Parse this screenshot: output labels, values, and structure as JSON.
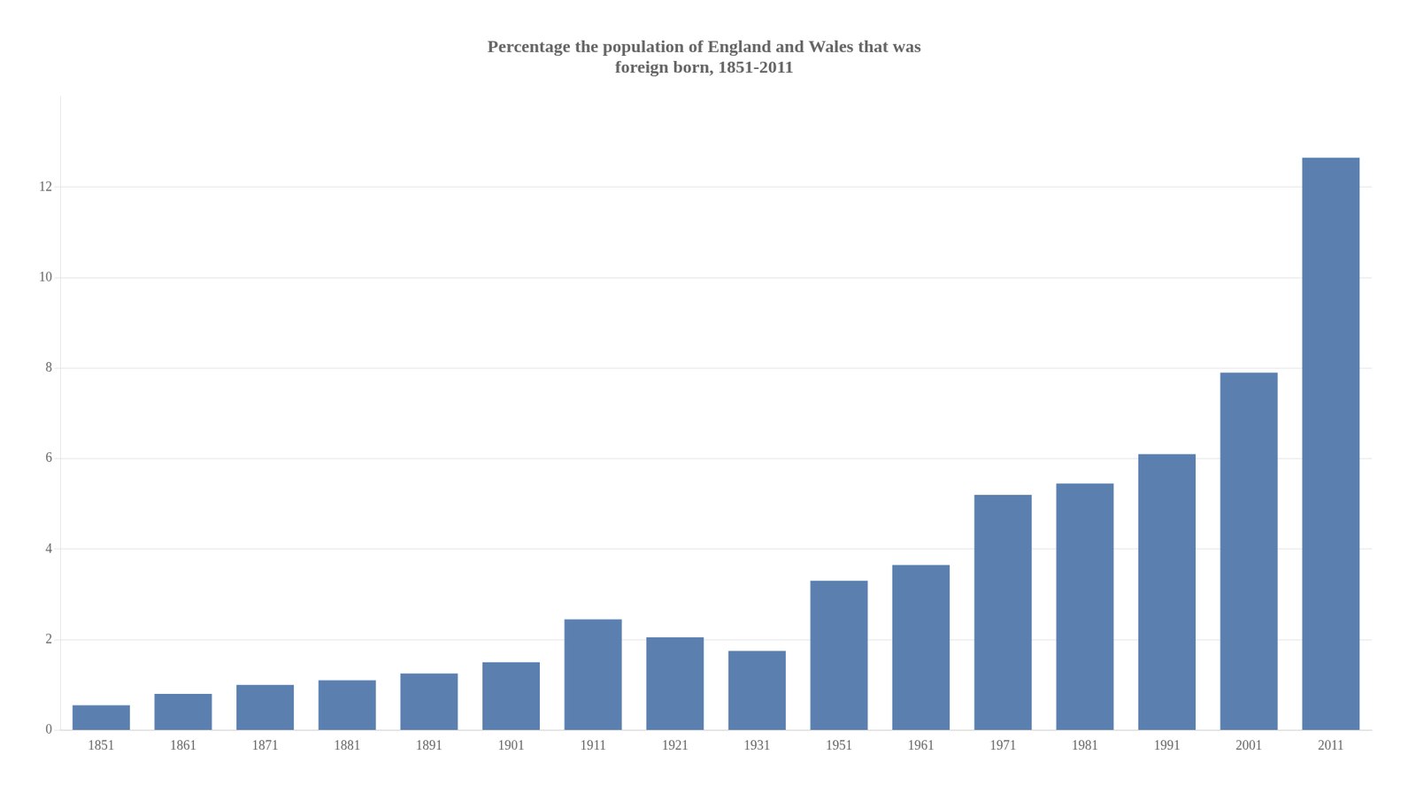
{
  "chart_data": {
    "type": "bar",
    "title": "Percentage the population of England and Wales that was\nforeign born, 1851-2011",
    "categories": [
      "1851",
      "1861",
      "1871",
      "1881",
      "1891",
      "1901",
      "1911",
      "1921",
      "1931",
      "1951",
      "1961",
      "1971",
      "1981",
      "1991",
      "2001",
      "2011"
    ],
    "values": [
      0.55,
      0.8,
      1.0,
      1.1,
      1.25,
      1.5,
      2.45,
      2.05,
      1.75,
      3.3,
      3.65,
      5.2,
      5.45,
      6.1,
      7.9,
      12.65
    ],
    "color": "#5b80b0",
    "ylim": [
      0,
      14
    ],
    "yticks": [
      0,
      2,
      4,
      6,
      8,
      10,
      12
    ],
    "grid": true
  }
}
